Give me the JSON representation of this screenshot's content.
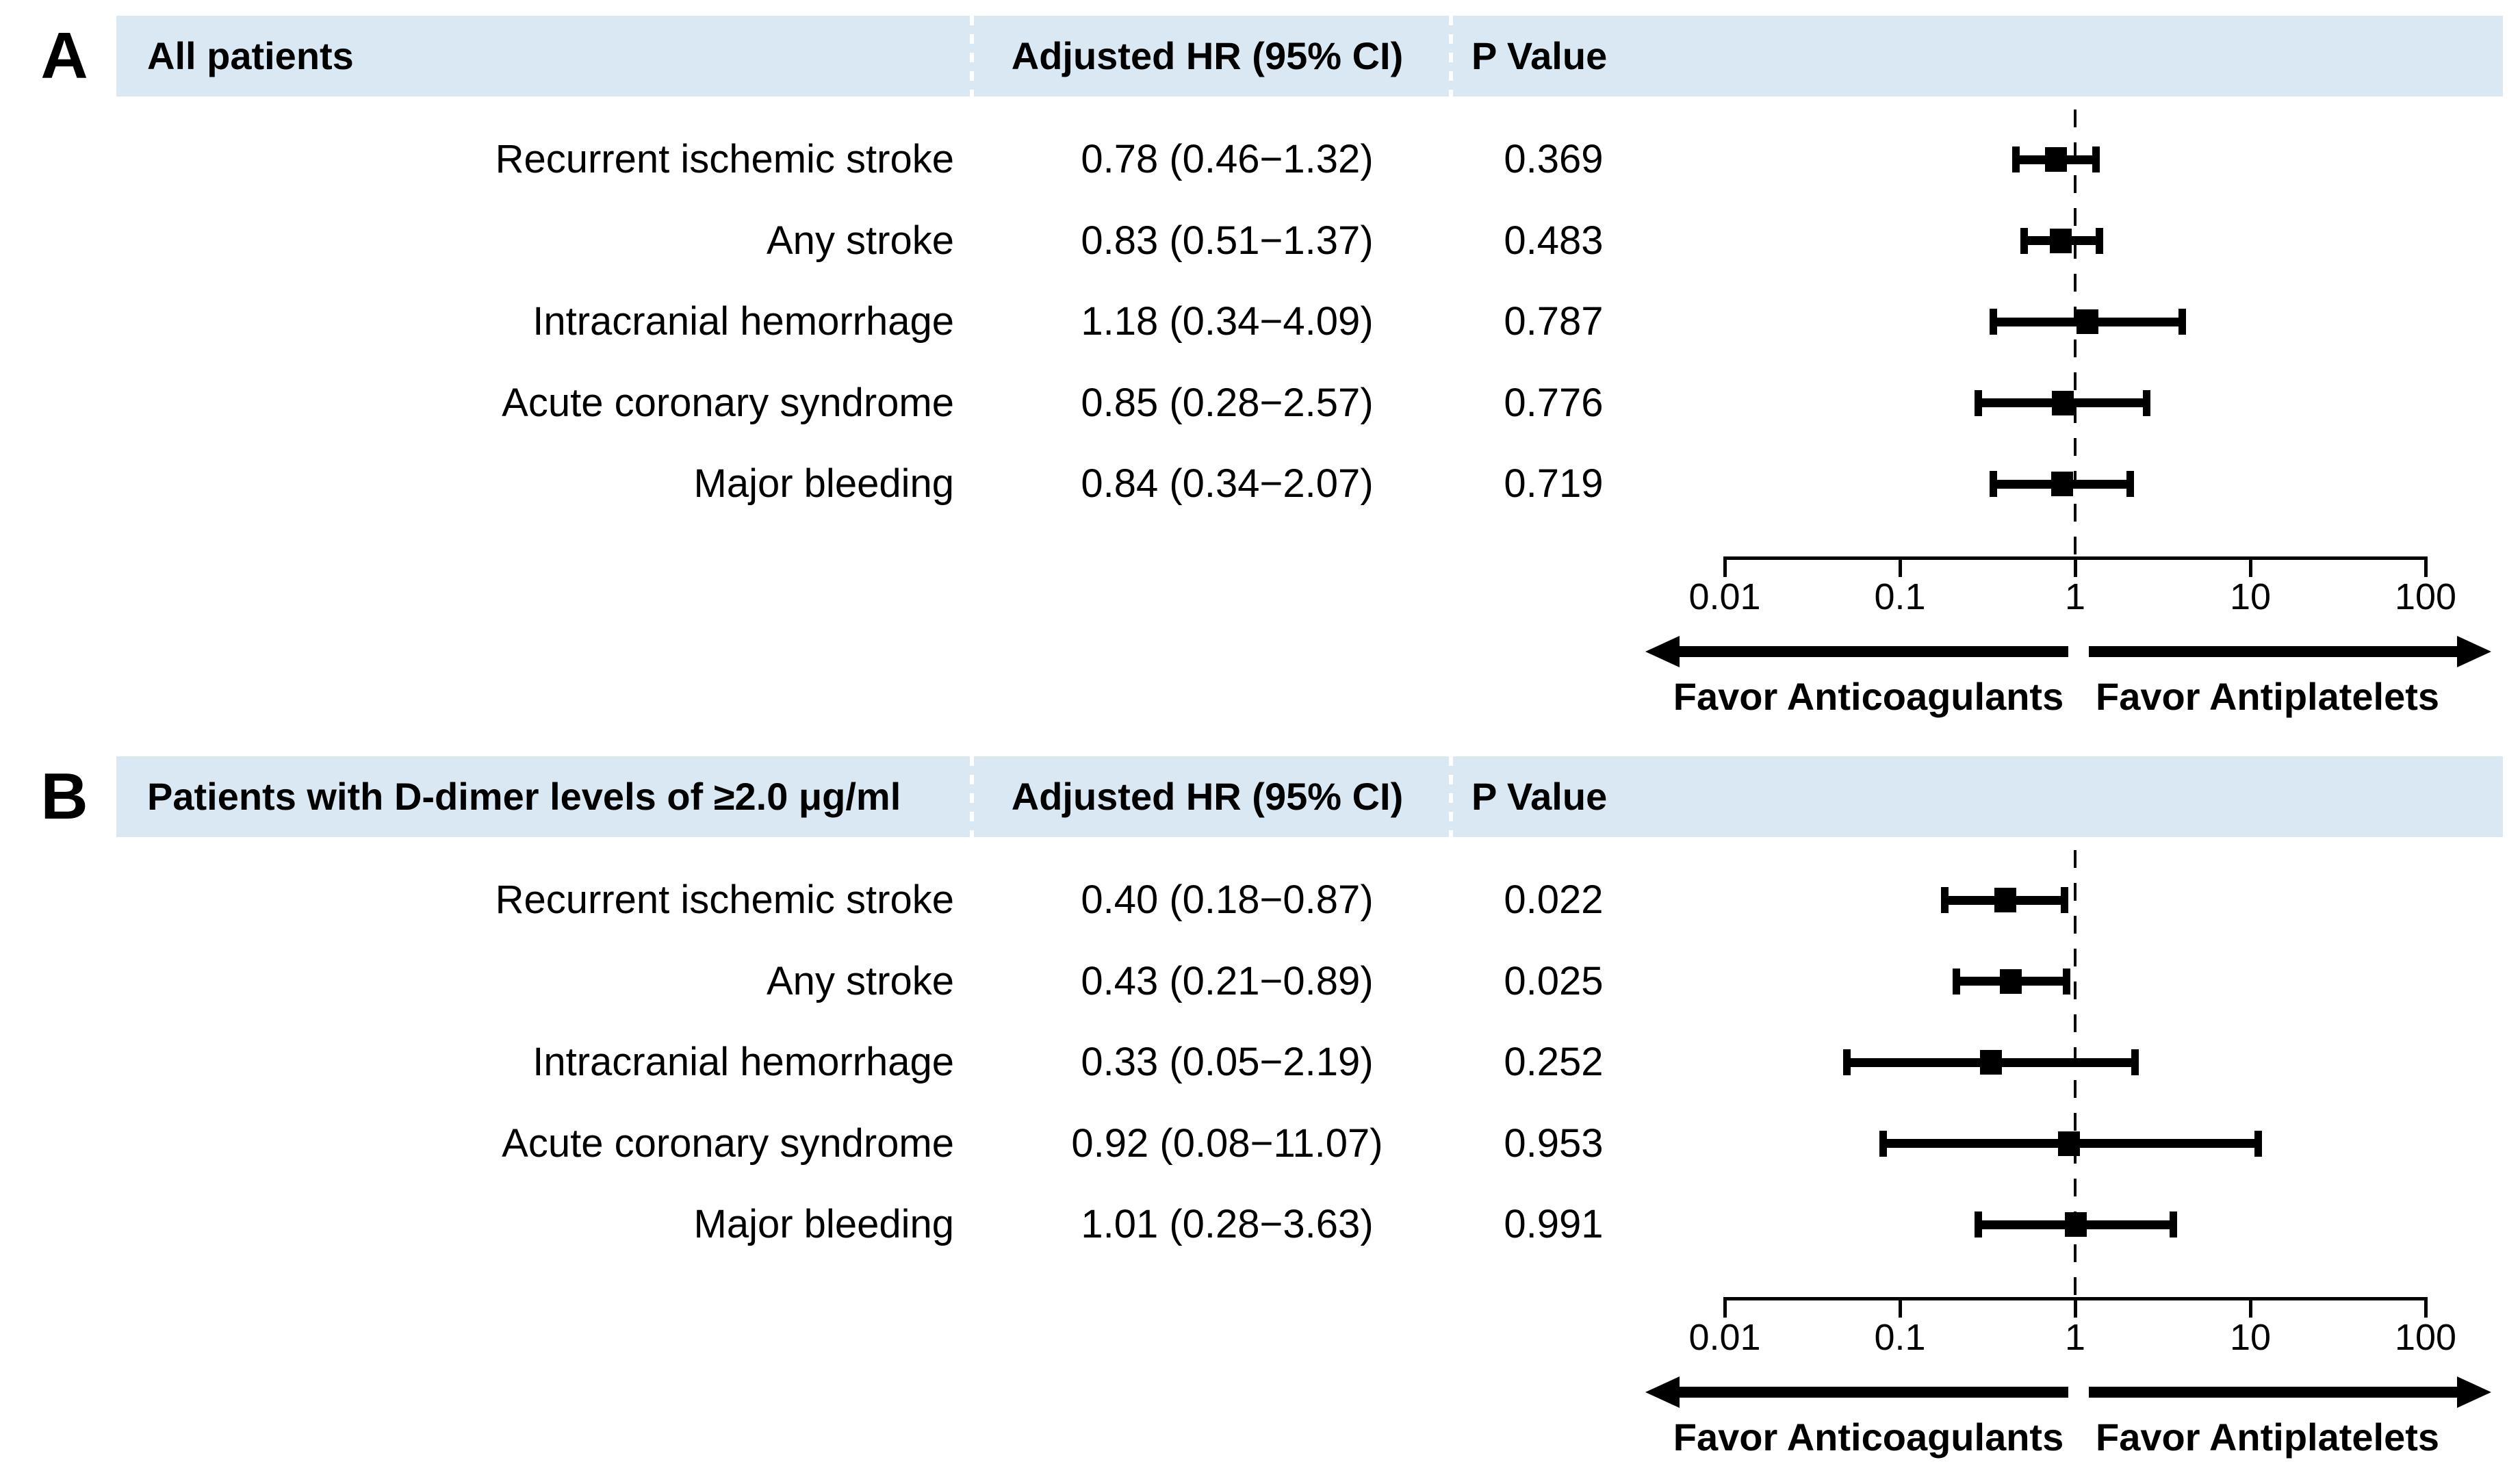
{
  "figure": {
    "background_color": "#ffffff",
    "band_color": "#dae8f4",
    "ink_color": "#000000",
    "separator_color": "#ffffff"
  },
  "header": {
    "hr_col": "Adjusted HR (95% CI)",
    "p_col": "P Value"
  },
  "axis": {
    "scale": "log",
    "tick_labels": [
      "0.01",
      "0.1",
      "1",
      "10",
      "100"
    ],
    "tick_values": [
      0.01,
      0.1,
      1,
      10,
      100
    ],
    "reference_value": 1
  },
  "direction_labels": {
    "left": "Favor Anticoagulants",
    "right": "Favor Antiplatelets"
  },
  "chart_data": [
    {
      "type": "scatter",
      "subtype": "forest-plot",
      "panel_letter": "A",
      "title": "All patients",
      "xscale": "log",
      "xlim": [
        0.01,
        100
      ],
      "xticks": [
        0.01,
        0.1,
        1,
        10,
        100
      ],
      "ref_line": 1,
      "categories": [
        "Recurrent ischemic stroke",
        "Any stroke",
        "Intracranial hemorrhage",
        "Acute coronary syndrome",
        "Major bleeding"
      ],
      "hr": [
        0.78,
        0.83,
        1.18,
        0.85,
        0.84
      ],
      "ci_low": [
        0.46,
        0.51,
        0.34,
        0.28,
        0.34
      ],
      "ci_high": [
        1.32,
        1.37,
        4.09,
        2.57,
        2.07
      ],
      "hr_labels": [
        "0.78 (0.46−1.32)",
        "0.83 (0.51−1.37)",
        "1.18 (0.34−4.09)",
        "0.85 (0.28−2.57)",
        "0.84 (0.34−2.07)"
      ],
      "p_values": [
        "0.369",
        "0.483",
        "0.787",
        "0.776",
        "0.719"
      ]
    },
    {
      "type": "scatter",
      "subtype": "forest-plot",
      "panel_letter": "B",
      "title": "Patients with D-dimer levels of ≥2.0 μg/ml",
      "xscale": "log",
      "xlim": [
        0.01,
        100
      ],
      "xticks": [
        0.01,
        0.1,
        1,
        10,
        100
      ],
      "ref_line": 1,
      "categories": [
        "Recurrent ischemic stroke",
        "Any stroke",
        "Intracranial hemorrhage",
        "Acute coronary syndrome",
        "Major bleeding"
      ],
      "hr": [
        0.4,
        0.43,
        0.33,
        0.92,
        1.01
      ],
      "ci_low": [
        0.18,
        0.21,
        0.05,
        0.08,
        0.28
      ],
      "ci_high": [
        0.87,
        0.89,
        2.19,
        11.07,
        3.63
      ],
      "hr_labels": [
        "0.40 (0.18−0.87)",
        "0.43 (0.21−0.89)",
        "0.33 (0.05−2.19)",
        "0.92 (0.08−11.07)",
        "1.01 (0.28−3.63)"
      ],
      "p_values": [
        "0.022",
        "0.025",
        "0.252",
        "0.953",
        "0.991"
      ]
    }
  ]
}
